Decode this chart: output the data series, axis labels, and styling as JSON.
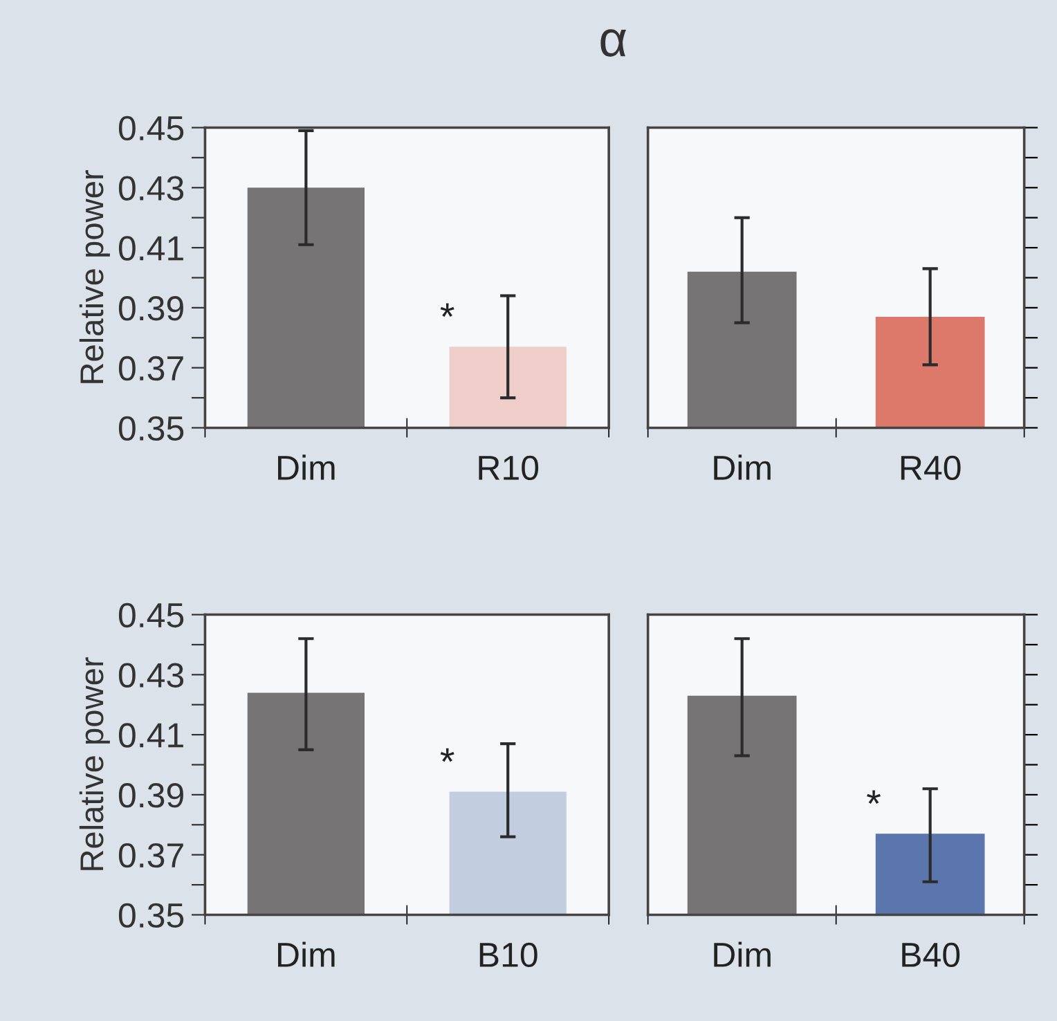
{
  "chart_data": [
    {
      "type": "bar",
      "title": "α",
      "ylabel": "Relative power",
      "categories": [
        "Dim",
        "R10"
      ],
      "values": [
        0.43,
        0.377
      ],
      "colors": [
        "#767475",
        "#efcdc9"
      ],
      "errors": [
        [
          0.411,
          0.449
        ],
        [
          0.36,
          0.394
        ]
      ],
      "ylim": [
        0.35,
        0.45
      ],
      "yticks": [
        0.35,
        {
          "value": 0.36,
          "label": null
        },
        0.37,
        {
          "value": 0.38,
          "label": null
        },
        0.39,
        {
          "value": 0.4,
          "label": null
        },
        0.41,
        {
          "value": 0.42,
          "label": null
        },
        0.43,
        {
          "value": 0.44,
          "label": null
        },
        0.45
      ],
      "annotations": [
        {
          "text": "*",
          "x": "R10",
          "y": 0.38
        }
      ]
    },
    {
      "type": "bar",
      "categories": [
        "Dim",
        "R40"
      ],
      "values": [
        0.402,
        0.387
      ],
      "colors": [
        "#767475",
        "#dd796b"
      ],
      "errors": [
        [
          0.385,
          0.42
        ],
        [
          0.371,
          0.403
        ]
      ],
      "ylim": [
        0.35,
        0.45
      ],
      "yticks": [
        {
          "value": 0.35,
          "label": null
        },
        {
          "value": 0.36,
          "label": null
        },
        {
          "value": 0.37,
          "label": null
        },
        {
          "value": 0.38,
          "label": null
        },
        {
          "value": 0.39,
          "label": null
        },
        {
          "value": 0.4,
          "label": null
        },
        {
          "value": 0.41,
          "label": null
        },
        {
          "value": 0.42,
          "label": null
        },
        {
          "value": 0.43,
          "label": null
        },
        {
          "value": 0.44,
          "label": null
        },
        {
          "value": 0.45,
          "label": null
        }
      ],
      "tick_labels": "x"
    },
    {
      "type": "bar",
      "ylabel": "Relative power",
      "categories": [
        "Dim",
        "B10"
      ],
      "values": [
        0.424,
        0.391
      ],
      "colors": [
        "#767475",
        "#c3cde0"
      ],
      "errors": [
        [
          0.405,
          0.442
        ],
        [
          0.376,
          0.407
        ]
      ],
      "ylim": [
        0.35,
        0.45
      ],
      "yticks": [
        0.35,
        {
          "value": 0.36,
          "label": null
        },
        0.37,
        {
          "value": 0.38,
          "label": null
        },
        0.39,
        {
          "value": 0.4,
          "label": null
        },
        0.41,
        {
          "value": 0.42,
          "label": null
        },
        0.43,
        {
          "value": 0.44,
          "label": null
        },
        0.45
      ],
      "annotations": [
        {
          "text": "*",
          "x": "B10",
          "y": 0.394
        }
      ]
    },
    {
      "type": "bar",
      "categories": [
        "Dim",
        "B40"
      ],
      "values": [
        0.423,
        0.377
      ],
      "colors": [
        "#767475",
        "#5a76ad"
      ],
      "errors": [
        [
          0.403,
          0.442
        ],
        [
          0.361,
          0.392
        ]
      ],
      "ylim": [
        0.35,
        0.45
      ],
      "yticks": [
        {
          "value": 0.35,
          "label": null
        },
        {
          "value": 0.36,
          "label": null
        },
        {
          "value": 0.37,
          "label": null
        },
        {
          "value": 0.38,
          "label": null
        },
        {
          "value": 0.39,
          "label": null
        },
        {
          "value": 0.4,
          "label": null
        },
        {
          "value": 0.41,
          "label": null
        },
        {
          "value": 0.42,
          "label": null
        },
        {
          "value": 0.43,
          "label": null
        },
        {
          "value": 0.44,
          "label": null
        },
        {
          "value": 0.45,
          "label": null
        }
      ],
      "tick_labels": "x",
      "annotations": [
        {
          "text": "*",
          "x": "B40",
          "y": 0.38
        }
      ]
    }
  ]
}
